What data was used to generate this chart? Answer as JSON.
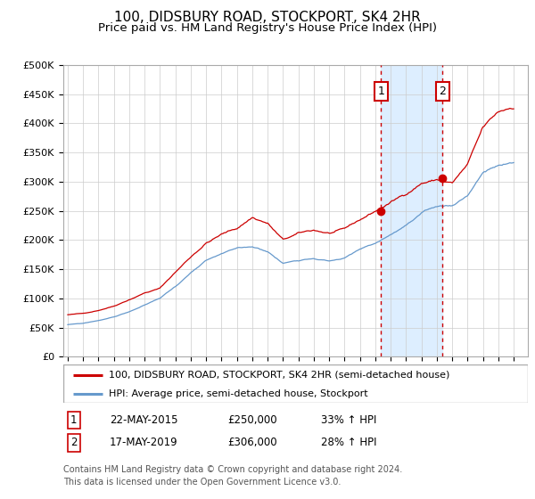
{
  "title": "100, DIDSBURY ROAD, STOCKPORT, SK4 2HR",
  "subtitle": "Price paid vs. HM Land Registry's House Price Index (HPI)",
  "ylim": [
    0,
    500000
  ],
  "yticks": [
    0,
    50000,
    100000,
    150000,
    200000,
    250000,
    300000,
    350000,
    400000,
    450000,
    500000
  ],
  "ytick_labels": [
    "£0",
    "£50K",
    "£100K",
    "£150K",
    "£200K",
    "£250K",
    "£300K",
    "£350K",
    "£400K",
    "£450K",
    "£500K"
  ],
  "xlim_start": 1994.7,
  "xlim_end": 2024.9,
  "event1_x": 2015.38,
  "event1_y": 250000,
  "event2_x": 2019.38,
  "event2_y": 306000,
  "red_color": "#cc0000",
  "blue_color": "#6699cc",
  "shade_color": "#ddeeff",
  "grid_color": "#cccccc",
  "bg_color": "#ffffff",
  "legend_line1": "100, DIDSBURY ROAD, STOCKPORT, SK4 2HR (semi-detached house)",
  "legend_line2": "HPI: Average price, semi-detached house, Stockport",
  "table_row1_num": "1",
  "table_row1_date": "22-MAY-2015",
  "table_row1_price": "£250,000",
  "table_row1_hpi": "33% ↑ HPI",
  "table_row2_num": "2",
  "table_row2_date": "17-MAY-2019",
  "table_row2_price": "£306,000",
  "table_row2_hpi": "28% ↑ HPI",
  "footnote_line1": "Contains HM Land Registry data © Crown copyright and database right 2024.",
  "footnote_line2": "This data is licensed under the Open Government Licence v3.0."
}
